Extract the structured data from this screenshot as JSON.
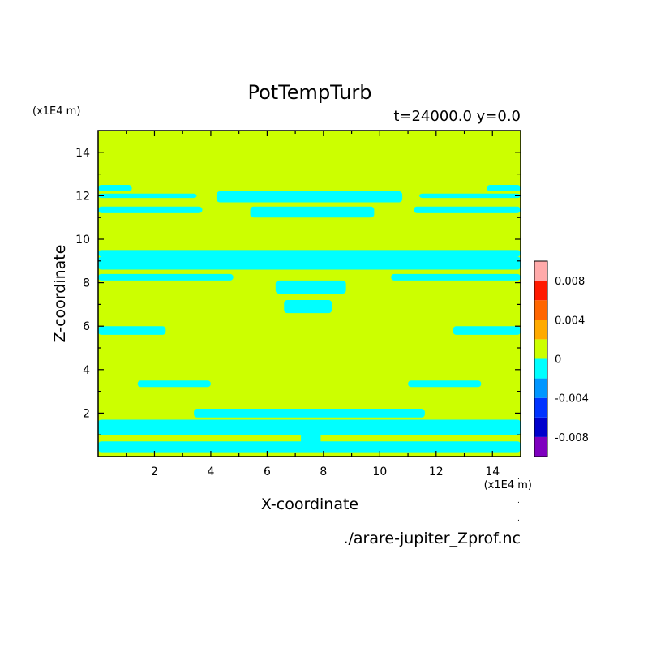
{
  "chart_data": {
    "type": "heatmap",
    "title": "PotTempTurb",
    "subtitle": "t=24000.0 y=0.0",
    "xlabel": "X-coordinate",
    "ylabel": "Z-coordinate",
    "x_unit": "(x1E4 m)",
    "y_unit": "(x1E4 m)",
    "xlim": [
      0,
      15
    ],
    "ylim": [
      0,
      15
    ],
    "x_ticks": [
      2,
      4,
      6,
      8,
      10,
      12,
      14
    ],
    "y_ticks": [
      2,
      4,
      6,
      8,
      10,
      12,
      14
    ],
    "colorbar": {
      "ticks": [
        "0.008",
        "0.004",
        "0",
        "-0.004",
        "-0.008"
      ],
      "levels": [
        {
          "min": -0.01,
          "max": -0.008,
          "color": "#7f00bf"
        },
        {
          "min": -0.008,
          "max": -0.006,
          "color": "#0000cc"
        },
        {
          "min": -0.006,
          "max": -0.004,
          "color": "#0033ff"
        },
        {
          "min": -0.004,
          "max": -0.002,
          "color": "#0096ff"
        },
        {
          "min": -0.002,
          "max": 0.0,
          "color": "#00ffff"
        },
        {
          "min": 0.0,
          "max": 0.002,
          "color": "#ccff00"
        },
        {
          "min": 0.002,
          "max": 0.004,
          "color": "#ffaa00"
        },
        {
          "min": 0.004,
          "max": 0.006,
          "color": "#ff6600"
        },
        {
          "min": 0.006,
          "max": 0.008,
          "color": "#ff1a00"
        },
        {
          "min": 0.008,
          "max": 0.01,
          "color": "#ffaaaa"
        }
      ]
    },
    "background_color": "#ccff00",
    "negative_color": "#00ffff",
    "negative_regions": [
      {
        "x": [
          0,
          1.2
        ],
        "z": [
          12.2,
          12.5
        ]
      },
      {
        "x": [
          0,
          3.5
        ],
        "z": [
          11.9,
          12.1
        ]
      },
      {
        "x": [
          0,
          3.7
        ],
        "z": [
          11.2,
          11.5
        ]
      },
      {
        "x": [
          11.4,
          15
        ],
        "z": [
          11.9,
          12.1
        ]
      },
      {
        "x": [
          13.8,
          15
        ],
        "z": [
          12.2,
          12.5
        ]
      },
      {
        "x": [
          11.2,
          15
        ],
        "z": [
          11.2,
          11.5
        ]
      },
      {
        "x": [
          4.2,
          10.8
        ],
        "z": [
          11.7,
          12.2
        ]
      },
      {
        "x": [
          5.4,
          9.8
        ],
        "z": [
          11.0,
          11.5
        ]
      },
      {
        "x": [
          0,
          15
        ],
        "z": [
          9.2,
          9.5
        ]
      },
      {
        "x": [
          0,
          15
        ],
        "z": [
          8.6,
          9.2
        ]
      },
      {
        "x": [
          0,
          4.8
        ],
        "z": [
          8.1,
          8.4
        ]
      },
      {
        "x": [
          10.4,
          15
        ],
        "z": [
          8.1,
          8.4
        ]
      },
      {
        "x": [
          6.3,
          8.8
        ],
        "z": [
          7.5,
          8.1
        ]
      },
      {
        "x": [
          6.6,
          8.3
        ],
        "z": [
          6.6,
          7.2
        ]
      },
      {
        "x": [
          0,
          2.4
        ],
        "z": [
          5.6,
          6.0
        ]
      },
      {
        "x": [
          12.6,
          15
        ],
        "z": [
          5.6,
          6.0
        ]
      },
      {
        "x": [
          1.4,
          4.0
        ],
        "z": [
          3.2,
          3.5
        ]
      },
      {
        "x": [
          11.0,
          13.6
        ],
        "z": [
          3.2,
          3.5
        ]
      },
      {
        "x": [
          3.4,
          11.6
        ],
        "z": [
          1.8,
          2.2
        ]
      },
      {
        "x": [
          3.8,
          11.2
        ],
        "z": [
          1.2,
          1.6
        ]
      },
      {
        "x": [
          0,
          15
        ],
        "z": [
          1.0,
          1.7
        ]
      },
      {
        "x": [
          0,
          15
        ],
        "z": [
          0.2,
          0.7
        ]
      },
      {
        "x": [
          7.2,
          7.9
        ],
        "z": [
          0.4,
          1.3
        ]
      }
    ],
    "source_file": "./arare-jupiter_Zprof.nc"
  }
}
